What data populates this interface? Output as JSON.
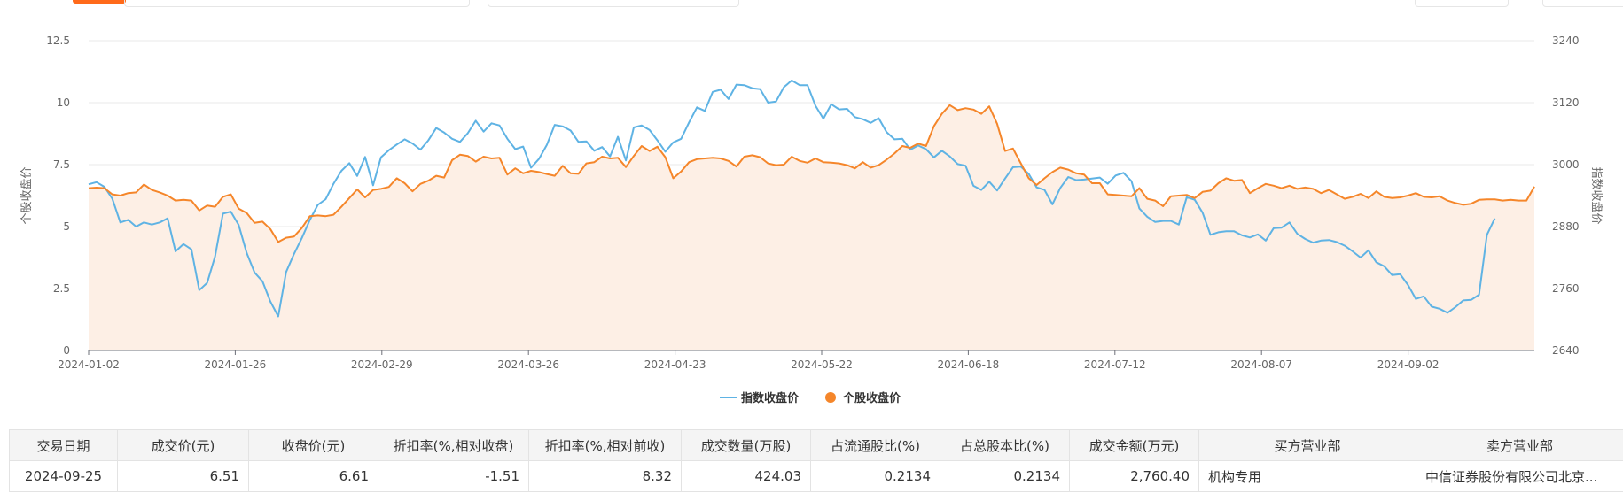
{
  "colors": {
    "index_line": "#5fb3e4",
    "stock_line": "#f5862a",
    "stock_area": "#fdefe5",
    "grid": "#e8e8e8",
    "axis_text": "#666666"
  },
  "chart_data": {
    "type": "line",
    "x_tick_labels": [
      "2024-01-02",
      "2024-01-26",
      "2024-02-29",
      "2024-03-26",
      "2024-04-23",
      "2024-05-22",
      "2024-06-18",
      "2024-07-12",
      "2024-08-07",
      "2024-09-02"
    ],
    "left_axis": {
      "label": "个股收盘价",
      "ylim": [
        0,
        12.5
      ],
      "ticks": [
        "12.5",
        "10",
        "7.5",
        "5",
        "2.5",
        "0"
      ]
    },
    "right_axis": {
      "label": "指数收盘价",
      "ylim": [
        2640,
        3240
      ],
      "ticks": [
        "3240",
        "3120",
        "3000",
        "2880",
        "2760",
        "2640"
      ]
    },
    "grid": true,
    "legend_position": "bottom-center",
    "series": [
      {
        "name": "指数收盘价",
        "axis": "right",
        "values": [
          2962,
          2966,
          2957,
          2934,
          2888,
          2893,
          2880,
          2888,
          2884,
          2888,
          2896,
          2832,
          2846,
          2836,
          2757,
          2771,
          2822,
          2905,
          2909,
          2883,
          2829,
          2791,
          2774,
          2735,
          2706,
          2792,
          2827,
          2858,
          2893,
          2922,
          2933,
          2963,
          2988,
          3003,
          2978,
          3015,
          2960,
          3014,
          3028,
          3039,
          3049,
          3041,
          3029,
          3047,
          3071,
          3062,
          3050,
          3044,
          3061,
          3085,
          3064,
          3080,
          3076,
          3050,
          3030,
          3035,
          2994,
          3011,
          3038,
          3077,
          3074,
          3066,
          3044,
          3045,
          3027,
          3034,
          3016,
          3054,
          3008,
          3072,
          3076,
          3067,
          3047,
          3025,
          3043,
          3050,
          3082,
          3111,
          3104,
          3141,
          3145,
          3127,
          3155,
          3154,
          3148,
          3146,
          3120,
          3122,
          3150,
          3163,
          3154,
          3154,
          3114,
          3089,
          3117,
          3107,
          3108,
          3092,
          3088,
          3081,
          3090,
          3063,
          3049,
          3050,
          3029,
          3037,
          3030,
          3014,
          3027,
          3016,
          3001,
          2998,
          2959,
          2951,
          2967,
          2950,
          2973,
          2995,
          2996,
          2982,
          2956,
          2951,
          2923,
          2955,
          2976,
          2970,
          2971,
          2973,
          2975,
          2963,
          2979,
          2984,
          2968,
          2915,
          2899,
          2889,
          2891,
          2891,
          2884,
          2937,
          2932,
          2907,
          2864,
          2869,
          2871,
          2871,
          2863,
          2859,
          2865,
          2853,
          2877,
          2878,
          2888,
          2866,
          2856,
          2849,
          2853,
          2854,
          2850,
          2843,
          2832,
          2820,
          2834,
          2811,
          2803,
          2786,
          2788,
          2767,
          2740,
          2745,
          2725,
          2721,
          2713,
          2724,
          2737,
          2738,
          2748,
          2864,
          2896
        ]
      },
      {
        "name": "个股收盘价",
        "axis": "left",
        "values": [
          6.55,
          6.57,
          6.55,
          6.3,
          6.25,
          6.35,
          6.38,
          6.7,
          6.48,
          6.38,
          6.25,
          6.05,
          6.08,
          6.05,
          5.65,
          5.85,
          5.8,
          6.2,
          6.3,
          5.72,
          5.55,
          5.15,
          5.2,
          4.9,
          4.38,
          4.55,
          4.6,
          4.95,
          5.42,
          5.45,
          5.42,
          5.48,
          5.8,
          6.15,
          6.5,
          6.18,
          6.48,
          6.52,
          6.6,
          6.95,
          6.75,
          6.42,
          6.72,
          6.85,
          7.05,
          6.98,
          7.68,
          7.9,
          7.85,
          7.62,
          7.82,
          7.75,
          7.78,
          7.1,
          7.35,
          7.15,
          7.25,
          7.2,
          7.12,
          7.05,
          7.45,
          7.15,
          7.13,
          7.55,
          7.6,
          7.82,
          7.75,
          7.78,
          7.4,
          7.85,
          8.25,
          8.05,
          8.22,
          7.8,
          6.95,
          7.22,
          7.6,
          7.72,
          7.75,
          7.78,
          7.75,
          7.65,
          7.42,
          7.82,
          7.88,
          7.8,
          7.55,
          7.48,
          7.5,
          7.82,
          7.65,
          7.58,
          7.75,
          7.6,
          7.58,
          7.55,
          7.48,
          7.35,
          7.6,
          7.38,
          7.48,
          7.7,
          7.95,
          8.25,
          8.18,
          8.35,
          8.25,
          9.05,
          9.55,
          9.9,
          9.7,
          9.78,
          9.72,
          9.55,
          9.85,
          9.15,
          8.05,
          8.15,
          7.55,
          6.95,
          6.68,
          6.95,
          7.2,
          7.38,
          7.3,
          7.15,
          7.1,
          6.75,
          6.75,
          6.3,
          6.28,
          6.25,
          6.22,
          6.55,
          6.12,
          6.05,
          5.82,
          6.22,
          6.25,
          6.28,
          6.15,
          6.4,
          6.45,
          6.75,
          6.95,
          6.85,
          6.88,
          6.35,
          6.55,
          6.72,
          6.65,
          6.55,
          6.65,
          6.52,
          6.58,
          6.52,
          6.35,
          6.48,
          6.3,
          6.12,
          6.2,
          6.32,
          6.15,
          6.42,
          6.2,
          6.15,
          6.18,
          6.25,
          6.35,
          6.2,
          6.18,
          6.22,
          6.05,
          5.95,
          5.88,
          5.92,
          6.08,
          6.1,
          6.1,
          6.05,
          6.08,
          6.05,
          6.05,
          6.61
        ]
      }
    ]
  },
  "table": {
    "headers": [
      "交易日期",
      "成交价(元)",
      "收盘价(元)",
      "折扣率(%,相对收盘)",
      "折扣率(%,相对前收)",
      "成交数量(万股)",
      "占流通股比(%)",
      "占总股本比(%)",
      "成交金额(万元)",
      "买方营业部",
      "卖方营业部"
    ],
    "rows": [
      [
        "2024-09-25",
        "6.51",
        "6.61",
        "-1.51",
        "8.32",
        "424.03",
        "0.2134",
        "0.2134",
        "2,760.40",
        "机构专用",
        "中信证券股份有限公司北京..."
      ]
    ]
  }
}
